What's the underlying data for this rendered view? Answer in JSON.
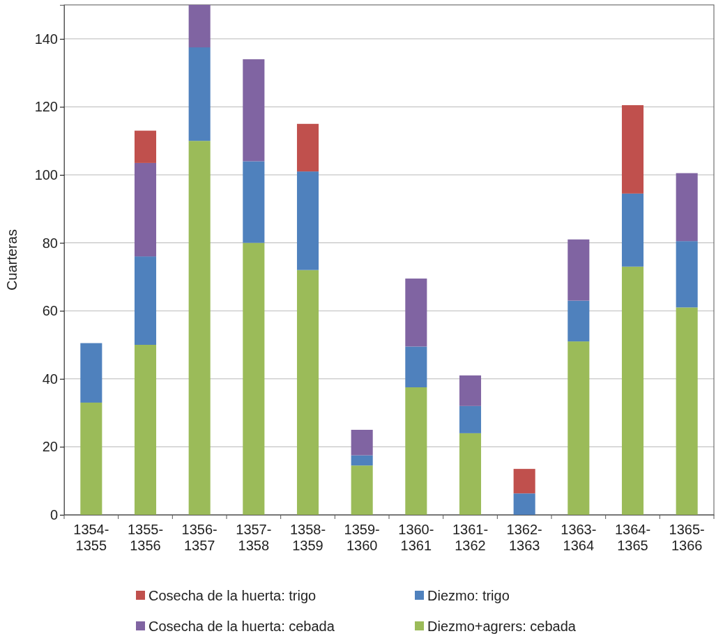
{
  "chart_data": {
    "type": "bar",
    "stacked": true,
    "ylabel": "Cuarteras",
    "categories": [
      "1354-1355",
      "1355-1356",
      "1356-1357",
      "1357-1358",
      "1358-1359",
      "1359-1360",
      "1360-1361",
      "1361-1362",
      "1362-1363",
      "1363-1364",
      "1364-1365",
      "1365-1366"
    ],
    "series": [
      {
        "name": "Diezmo+agrers: cebada",
        "color": "#9bbb59",
        "values": [
          33,
          50,
          110,
          80,
          72,
          14.5,
          37.5,
          24,
          0,
          51,
          73,
          61
        ]
      },
      {
        "name": "Diezmo: trigo",
        "color": "#4f81bd",
        "values": [
          17.5,
          26,
          27.5,
          24,
          29,
          3,
          12,
          8,
          6.3,
          12,
          21.5,
          19.5
        ]
      },
      {
        "name": "Cosecha de la huerta: cebada",
        "color": "#8064a2",
        "values": [
          0,
          27.5,
          12.5,
          30,
          0,
          7.5,
          20,
          9,
          0,
          18,
          0,
          20
        ]
      },
      {
        "name": "Cosecha de la huerta: trigo",
        "color": "#c0504d",
        "values": [
          0,
          9.5,
          0,
          0,
          14,
          0,
          0,
          0,
          7.2,
          0,
          26,
          0
        ]
      }
    ],
    "ylim": [
      0,
      150
    ],
    "yticks": [
      0,
      20,
      40,
      60,
      80,
      100,
      120,
      140
    ],
    "grid": "y",
    "legend": "bottom"
  }
}
